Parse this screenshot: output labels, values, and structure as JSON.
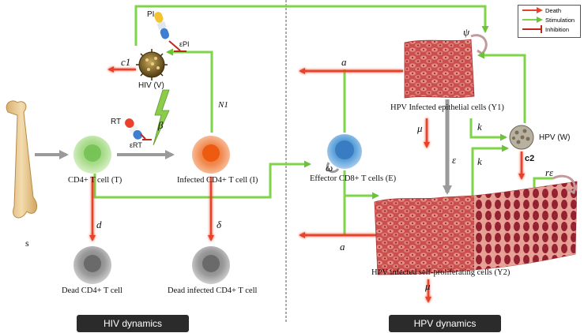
{
  "legend": {
    "death": "Death",
    "stimulation": "Stimulation",
    "inhibition": "Inhibition"
  },
  "hiv": {
    "panel_label": "HIV dynamics",
    "source": "s",
    "pi": "PI",
    "epsilon_pi": "εPI",
    "virus": "HIV (V)",
    "c1": "c1",
    "rt": "RT",
    "epsilon_rt": "εRT",
    "beta": "β",
    "n1": "N1",
    "cd4": "CD4+ T cell (T)",
    "infected_cd4": "Infected CD4+ T cell (I)",
    "d": "d",
    "delta": "δ",
    "dead_cd4": "Dead CD4+ T cell",
    "dead_infected": "Dead infected CD4+ T cell"
  },
  "hpv": {
    "panel_label": "HPV dynamics",
    "a_top": "a",
    "psi": "ψ",
    "epithelial": "HPV Infected epithelial cells (Y1)",
    "mu_top": "μ",
    "k1": "k",
    "k2": "k",
    "virus": "HPV (W)",
    "c2": "c2",
    "epsilon": "ε",
    "omega": "ω",
    "effector": "Effector CD8+ T cells (E)",
    "r_epsilon": "rε",
    "a_bottom": "a",
    "self_prolif": "HPV infected self-proliferating cells (Y2)",
    "mu_bottom": "μ"
  },
  "colors": {
    "death": "#e8432a",
    "stimulation": "#7fd44a",
    "inhibition": "#c0281d"
  }
}
